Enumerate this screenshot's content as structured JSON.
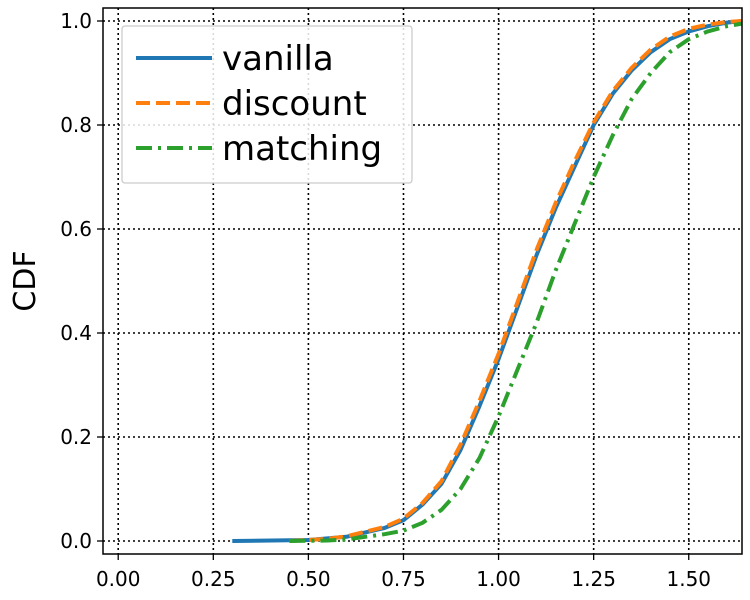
{
  "chart_data": {
    "type": "line",
    "title": "",
    "xlabel": "",
    "ylabel": "CDF",
    "xlim": [
      -0.04,
      1.64
    ],
    "ylim": [
      -0.025,
      1.025
    ],
    "xticks": [
      0.0,
      0.25,
      0.5,
      0.75,
      1.0,
      1.25,
      1.5
    ],
    "xtick_labels": [
      "0.00",
      "0.25",
      "0.50",
      "0.75",
      "1.00",
      "1.25",
      "1.50"
    ],
    "yticks": [
      0.0,
      0.2,
      0.4,
      0.6,
      0.8,
      1.0
    ],
    "ytick_labels": [
      "0.0",
      "0.2",
      "0.4",
      "0.6",
      "0.8",
      "1.0"
    ],
    "grid": true,
    "legend_position": "top-left",
    "series": [
      {
        "name": "vanilla",
        "color": "#1f77b4",
        "style": "solid",
        "x": [
          0.3,
          0.5,
          0.6,
          0.7,
          0.75,
          0.8,
          0.85,
          0.9,
          0.95,
          1.0,
          1.05,
          1.1,
          1.15,
          1.2,
          1.25,
          1.3,
          1.35,
          1.4,
          1.45,
          1.5,
          1.55,
          1.6,
          1.64
        ],
        "y": [
          0.0,
          0.002,
          0.008,
          0.025,
          0.04,
          0.07,
          0.11,
          0.175,
          0.26,
          0.35,
          0.45,
          0.55,
          0.64,
          0.72,
          0.8,
          0.86,
          0.905,
          0.94,
          0.965,
          0.98,
          0.99,
          0.997,
          1.0
        ]
      },
      {
        "name": "discount",
        "color": "#ff7f0e",
        "style": "dashed",
        "x": [
          0.45,
          0.55,
          0.6,
          0.7,
          0.75,
          0.8,
          0.85,
          0.9,
          0.95,
          1.0,
          1.05,
          1.1,
          1.15,
          1.2,
          1.25,
          1.3,
          1.35,
          1.4,
          1.45,
          1.5,
          1.55,
          1.6,
          1.64
        ],
        "y": [
          0.0,
          0.004,
          0.009,
          0.027,
          0.043,
          0.073,
          0.115,
          0.185,
          0.27,
          0.36,
          0.46,
          0.56,
          0.65,
          0.73,
          0.805,
          0.865,
          0.91,
          0.945,
          0.97,
          0.985,
          0.993,
          0.998,
          1.0
        ]
      },
      {
        "name": "matching",
        "color": "#2ca02c",
        "style": "dashdot",
        "x": [
          0.45,
          0.55,
          0.6,
          0.7,
          0.75,
          0.8,
          0.85,
          0.9,
          0.95,
          1.0,
          1.05,
          1.1,
          1.15,
          1.2,
          1.25,
          1.3,
          1.35,
          1.4,
          1.45,
          1.5,
          1.55,
          1.6,
          1.64
        ],
        "y": [
          0.0,
          0.001,
          0.003,
          0.013,
          0.02,
          0.035,
          0.06,
          0.1,
          0.16,
          0.24,
          0.33,
          0.42,
          0.52,
          0.61,
          0.7,
          0.78,
          0.85,
          0.9,
          0.94,
          0.965,
          0.98,
          0.99,
          0.995
        ]
      }
    ]
  }
}
